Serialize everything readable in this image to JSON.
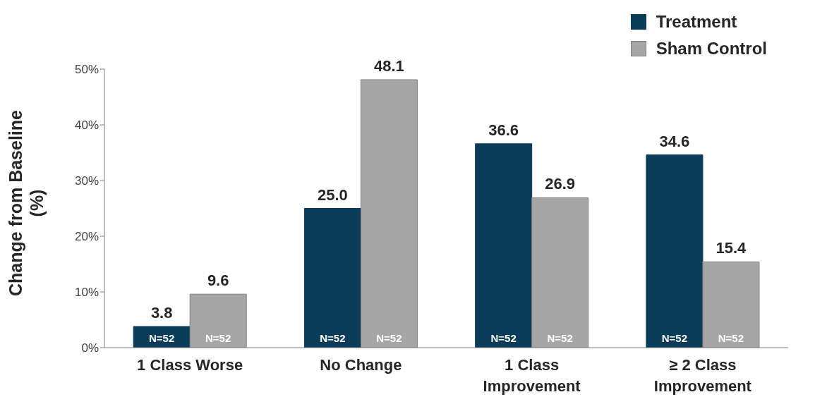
{
  "chart_data": {
    "type": "bar",
    "ylabel": "Change from Baseline (%)",
    "categories": [
      "1 Class Worse",
      "No Change",
      "1 Class Improvement",
      "≥ 2 Class Improvement"
    ],
    "series": [
      {
        "name": "Treatment",
        "color": "#0b3c5a",
        "values": [
          3.8,
          25.0,
          36.6,
          34.6
        ],
        "value_labels": [
          "3.8",
          "25.0",
          "36.6",
          "34.6"
        ]
      },
      {
        "name": "Sham Control",
        "color": "#a6a6a6",
        "values": [
          9.6,
          48.1,
          26.9,
          15.4
        ],
        "value_labels": [
          "9.6",
          "48.1",
          "26.9",
          "15.4"
        ]
      }
    ],
    "ylim": [
      0,
      50
    ],
    "yticks": [
      {
        "value": 0,
        "label": "0%"
      },
      {
        "value": 10,
        "label": "10%"
      },
      {
        "value": 20,
        "label": "20%"
      },
      {
        "value": 30,
        "label": "30%"
      },
      {
        "value": 40,
        "label": "40%"
      },
      {
        "value": 50,
        "label": "50%"
      }
    ],
    "annotations": [
      "N=52",
      "N=52",
      "N=52",
      "N=52",
      "N=52",
      "N=52",
      "N=52",
      "N=52"
    ],
    "legend": "top right"
  }
}
